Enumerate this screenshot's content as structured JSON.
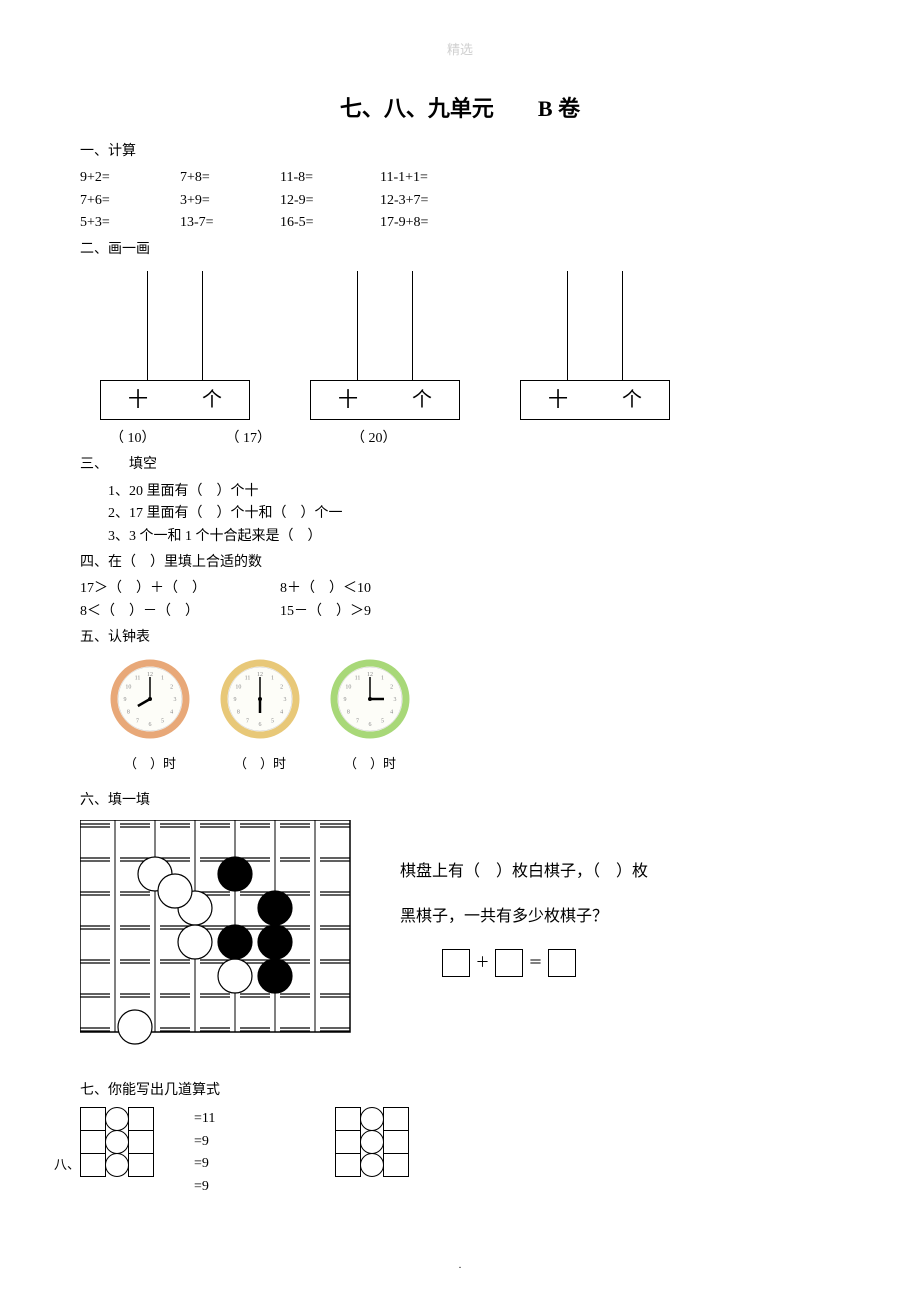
{
  "watermark": "精选",
  "title": "七、八、九单元　　B 卷",
  "sections": {
    "s1": "一、计算",
    "s2": "二、画一画",
    "s3": "三、　　填空",
    "s4": "四、在（　）里填上合适的数",
    "s5": "五、认钟表",
    "s6": "六、填一填",
    "s7": "七、你能写出几道算式",
    "s8": "八、"
  },
  "calc": {
    "r1": [
      "9+2=",
      "7+8=",
      "11-8=",
      "11-1+1="
    ],
    "r2": [
      "7+6=",
      "3+9=",
      "12-9=",
      "12-3+7="
    ],
    "r3": [
      "5+3=",
      "13-7=",
      "16-5=",
      "17-9+8="
    ]
  },
  "abacus": {
    "left_char": "十",
    "right_char": "个",
    "labels": [
      "（ 10）",
      "（ 17）",
      "（ 20）"
    ]
  },
  "fill": {
    "q1": "1、20 里面有（　）个十",
    "q2": "2、17 里面有（　）个十和（　）个一",
    "q3": "3、3 个一和 1 个十合起来是（　）"
  },
  "ineq": {
    "r1a": "17＞（　）＋（　）",
    "r1b": "8＋（　）＜10",
    "r2a": "8＜（　）－（　）",
    "r2b": "15－（　）＞9"
  },
  "clocks": {
    "label": "（　）时",
    "faces": [
      {
        "ring": "#e8a878",
        "hour": 8,
        "minute": 0
      },
      {
        "ring": "#e8c878",
        "hour": 6,
        "minute": 0
      },
      {
        "ring": "#a8d878",
        "hour": 3,
        "minute": 0
      }
    ]
  },
  "board": {
    "grid_size": 7,
    "cell": 40,
    "white_stones": [
      [
        1.5,
        1
      ],
      [
        2.5,
        2
      ],
      [
        2.5,
        3
      ],
      [
        2,
        1.5
      ],
      [
        3.5,
        4
      ],
      [
        1,
        5.5
      ]
    ],
    "black_stones": [
      [
        3.5,
        1
      ],
      [
        4.5,
        2
      ],
      [
        3.5,
        3
      ],
      [
        4.5,
        3
      ],
      [
        4.5,
        4
      ]
    ],
    "text1_a": "棋盘上有（　）枚白棋子，（　）枚",
    "text1_b": "黑棋子，一共有多少枚棋子？",
    "plus": "＋",
    "equals": "＝"
  },
  "seven": {
    "eq11": "=11",
    "eq9": "=9"
  },
  "footer": "."
}
